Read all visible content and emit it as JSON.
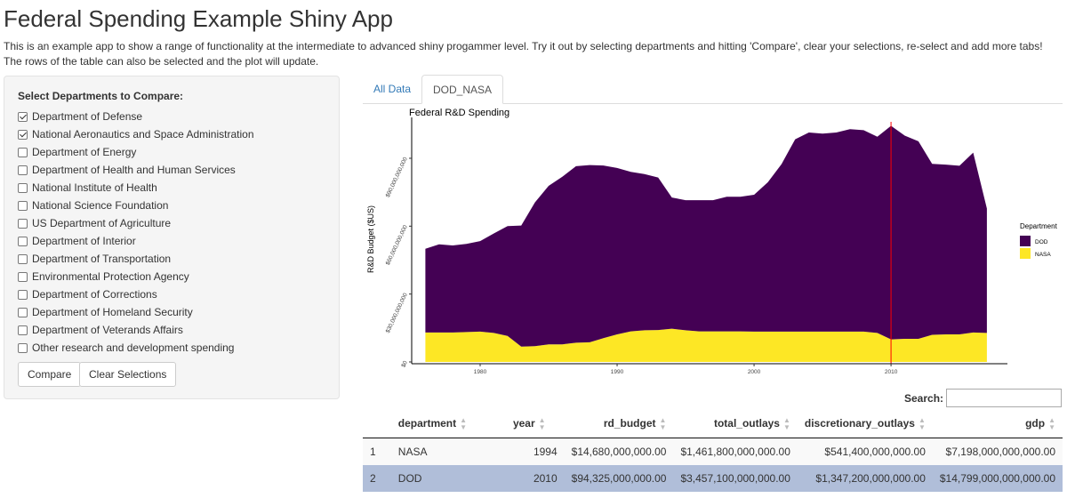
{
  "app": {
    "title": "Federal Spending Example Shiny App",
    "description": "This is an example app to show a range of functionality at the intermediate to advanced shiny progammer level. Try it out by selecting departments and hitting 'Compare', clear your selections, re-select and add more tabs! The rows of the table can also be selected and the plot will update."
  },
  "sidebar": {
    "label": "Select Departments to Compare:",
    "departments": [
      {
        "label": "Department of Defense",
        "checked": true
      },
      {
        "label": "National Aeronautics and Space Administration",
        "checked": true
      },
      {
        "label": "Department of Energy",
        "checked": false
      },
      {
        "label": "Department of Health and Human Services",
        "checked": false
      },
      {
        "label": "National Institute of Health",
        "checked": false
      },
      {
        "label": "National Science Foundation",
        "checked": false
      },
      {
        "label": "US Department of Agriculture",
        "checked": false
      },
      {
        "label": "Department of Interior",
        "checked": false
      },
      {
        "label": "Department of Transportation",
        "checked": false
      },
      {
        "label": "Environmental Protection Agency",
        "checked": false
      },
      {
        "label": "Department of Corrections",
        "checked": false
      },
      {
        "label": "Department of Homeland Security",
        "checked": false
      },
      {
        "label": "Department of Veterands Affairs",
        "checked": false
      },
      {
        "label": "Other research and development spending",
        "checked": false
      }
    ],
    "compare_label": "Compare",
    "clear_label": "Clear Selections"
  },
  "tabs": [
    {
      "label": "All Data",
      "active": false
    },
    {
      "label": "DOD_NASA",
      "active": true
    }
  ],
  "chart_data": {
    "type": "area",
    "stacked": true,
    "title": "Federal R&D Spending",
    "xlabel": "",
    "ylabel": "R&D Budget ($US)",
    "x": [
      1976,
      1977,
      1978,
      1979,
      1980,
      1981,
      1982,
      1983,
      1984,
      1985,
      1986,
      1987,
      1988,
      1989,
      1990,
      1991,
      1992,
      1993,
      1994,
      1995,
      1996,
      1997,
      1998,
      1999,
      2000,
      2001,
      2002,
      2003,
      2004,
      2005,
      2006,
      2007,
      2008,
      2009,
      2010,
      2011,
      2012,
      2013,
      2014,
      2015,
      2016,
      2017
    ],
    "xlim": [
      1975,
      2018.5
    ],
    "xticks": [
      1980,
      1990,
      2000,
      2010
    ],
    "xtick_labels": [
      "1980",
      "1990",
      "2000",
      "2010"
    ],
    "ylim": [
      0,
      112000000000
    ],
    "yticks": [
      0,
      30000000000,
      60000000000,
      90000000000
    ],
    "ytick_labels": [
      "$0",
      "$30,000,000,000",
      "$60,000,000,000",
      "$90,000,000,000"
    ],
    "series": [
      {
        "name": "NASA",
        "color": "#fde725",
        "values": [
          13000000000,
          13000000000,
          13000000000,
          13200000000,
          13400000000,
          12800000000,
          11500000000,
          6800000000,
          7000000000,
          7800000000,
          7800000000,
          8500000000,
          8700000000,
          10500000000,
          12200000000,
          13500000000,
          14000000000,
          14100000000,
          14680000000,
          14000000000,
          13500000000,
          13500000000,
          13500000000,
          13500000000,
          13400000000,
          13400000000,
          13400000000,
          13400000000,
          13400000000,
          13400000000,
          13400000000,
          13400000000,
          13400000000,
          12800000000,
          10000000000,
          10200000000,
          10200000000,
          12000000000,
          12200000000,
          12200000000,
          13000000000,
          12800000000
        ]
      },
      {
        "name": "DOD",
        "color": "#440154",
        "values": [
          37000000000,
          39000000000,
          38500000000,
          39000000000,
          40000000000,
          44000000000,
          48500000000,
          53500000000,
          63500000000,
          70000000000,
          74000000000,
          78000000000,
          78300000000,
          76300000000,
          73500000000,
          70500000000,
          69000000000,
          67400000000,
          58000000000,
          57500000000,
          58000000000,
          58000000000,
          59500000000,
          59500000000,
          60500000000,
          66000000000,
          74000000000,
          85000000000,
          88000000000,
          87500000000,
          88000000000,
          89500000000,
          89000000000,
          86700000000,
          94325000000,
          89800000000,
          87300000000,
          75500000000,
          75000000000,
          74500000000,
          79500000000,
          55000000000
        ]
      }
    ],
    "vline_x": 2010,
    "vline_color": "#ff0000",
    "legend": {
      "title": "Department",
      "entries": [
        "DOD",
        "NASA"
      ],
      "position": "right"
    },
    "grid": false
  },
  "search": {
    "label": "Search:",
    "value": ""
  },
  "table": {
    "columns": [
      "",
      "department",
      "year",
      "rd_budget",
      "total_outlays",
      "discretionary_outlays",
      "gdp"
    ],
    "rows": [
      {
        "cells": [
          "1",
          "NASA",
          "1994",
          "$14,680,000,000.00",
          "$1,461,800,000,000.00",
          "$541,400,000,000.00",
          "$7,198,000,000,000.00"
        ],
        "selected": false
      },
      {
        "cells": [
          "2",
          "DOD",
          "2010",
          "$94,325,000,000.00",
          "$3,457,100,000,000.00",
          "$1,347,200,000,000.00",
          "$14,799,000,000,000.00"
        ],
        "selected": true
      }
    ]
  }
}
